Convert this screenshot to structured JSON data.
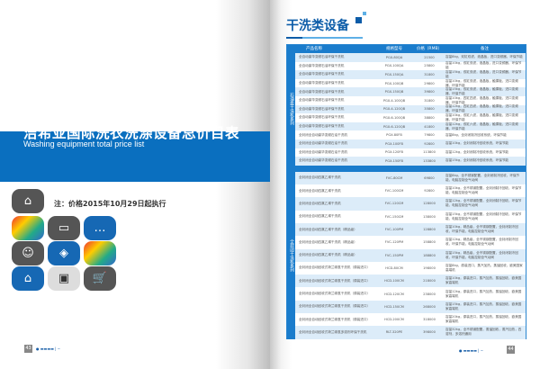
{
  "left_page": {
    "title": "洁希亚国际洗衣洗涤设备总价目表",
    "subtitle": "Washing equipment total price list",
    "note": "注：价格2015年10月29日起执行",
    "page_number": "43",
    "brand_color": "#0a6fbf",
    "icons": [
      "briefcase-icon",
      "faces-icon",
      "credit-card-icon",
      "chat-icon",
      "brain-icon",
      "price-tag-icon",
      "collage-icon",
      "home-icon",
      "devices-icon",
      "shopping-cart-icon"
    ]
  },
  "right_page": {
    "title": "干洗类设备",
    "page_number": "44",
    "headers": [
      "产品名称",
      "规格型号",
      "价格（RMB）",
      "备注"
    ],
    "sections": [
      {
        "label": "石油类干洗机系列",
        "rows": [
          [
            "全自动豪华变频石油环保干洗机",
            "PGX-80QA",
            "21500",
            "容量8kg，双缸双滤，液晶板，进口变频器，环保节能"
          ],
          [
            "全自动豪华变频石油环保干洗机",
            "PGX-100QA",
            "25800",
            "容量10kg，双缸双滤，液晶板，进口变频器，环保节能"
          ],
          [
            "全自动豪华变频石油环保干洗机",
            "PGX-150QA",
            "31800",
            "容量15kg，双缸双滤，液晶板，进口变频器，环保节能"
          ],
          [
            "全自动豪华变频石油环保干洗机",
            "PGX-100QB",
            "29800",
            "容量10kg，双缸双滤，液晶板，触摸板，进口变频器，环保节能"
          ],
          [
            "全自动豪华变频石油环保干洗机",
            "PGX-150QB",
            "39800",
            "容量15kg，双缸双滤，液晶板，触摸板，进口变频器，环保节能"
          ],
          [
            "全自动豪华变频石油环保干洗机",
            "PGX-4-100QB",
            "31800",
            "容量10kg，四缸四滤，液晶板，触摸板，进口变频器，环保节能"
          ],
          [
            "全自动豪华变频石油环保干洗机",
            "PGX-4-120QB",
            "35800",
            "容量12kg，四缸四滤，液晶板，触摸板，进口变频器，环保节能"
          ],
          [
            "全自动豪华变频石油环保干洗机",
            "PGX-6-100QB",
            "38800",
            "容量10kg，双缸六滤，液晶板，触摸板，进口变频器，环保节能"
          ],
          [
            "全自动豪华变频石油环保干洗机",
            "PGX-6-120QB",
            "41800",
            "容量12kg，双缸六滤，液晶板，触摸板，进口变频器，环保节能"
          ],
          [
            "全封闭全自动豪华变频石油干洗机",
            "PGX-80FB",
            "79800",
            "容量8kg，全封闭制冷回收系统，环保节能"
          ],
          [
            "全封闭全自动豪华变频石油干洗机",
            "PGX-100FB",
            "92800",
            "容量10kg，全封闭制冷回收系统，环保节能"
          ],
          [
            "全封闭全自动豪华变频石油干洗机",
            "PGX-120FB",
            "113800",
            "容量12kg，全封闭制冷回收系统，环保节能"
          ],
          [
            "全封闭全自动豪华变频石油干洗机",
            "PGX-150FB",
            "133800",
            "容量15kg，全封闭制冷回收系统，环保节能"
          ]
        ]
      },
      {
        "label": "全封闭干洗机系列",
        "rows": [
          [
            "全封闭全自动四氯乙烯干洗机",
            "FVC-80CM",
            "69800",
            "容量8kg，全不锈钢配置，全封闭制冷回收，环保节能，电脑控制全气动阀"
          ],
          [
            "全封闭全自动四氯乙烯干洗机",
            "FVC-100CM",
            "92800",
            "容量10kg，全不锈钢配置，全封闭制冷回收，环保节能，电脑控制全气动阀"
          ],
          [
            "全封闭全自动四氯乙烯干洗机",
            "FVC-120CM",
            "128000",
            "容量12kg，全不锈钢配置，全封闭制冷回收，环保节能，电脑控制全气动阀"
          ],
          [
            "全封闭全自动四氯乙烯干洗机",
            "FVC-150CM",
            "138000",
            "容量15kg，全不锈钢配置，全封闭制冷回收，环保节能，电脑控制全气动阀"
          ],
          [
            "全封闭全自动四氯乙烯干洗机（精品级）",
            "FVC-100PM",
            "128800",
            "容量10kg，精品级，全不锈钢配置，全封闭制冷回收，环保节能，电脑控制全气动阀"
          ],
          [
            "全封闭全自动四氯乙烯干洗机（精品级）",
            "FVC-120PM",
            "158800",
            "容量12kg，精品级，全不锈钢配置，全封闭制冷回收，环保节能，电脑控制全气动阀"
          ],
          [
            "全封闭全自动四氯乙烯干洗机（精品级）",
            "FVC-150PM",
            "188800",
            "容量15kg，精品级，全不锈钢配置，全封闭制冷回收，环保节能，电脑控制全气动阀"
          ],
          [
            "全封闭全自动回收式荷兰碳氢干洗机（原装进口）",
            "HCD-80CM",
            "198000",
            "容量8kg，原装进口，蒸汽加热，蒸馏回收，欧美国家高端机"
          ],
          [
            "全封闭全自动回收式荷兰碳氢干洗机（原装进口）",
            "HCD-100CM",
            "218000",
            "容量10kg，原装进口，蒸汽加热，蒸馏回收，欧美国家高端机"
          ],
          [
            "全封闭全自动回收式荷兰碳氢干洗机（原装进口）",
            "HCD-120CM",
            "238000",
            "容量12kg，原装进口，蒸汽加热，蒸馏回收，欧美国家高端机"
          ],
          [
            "全封闭全自动回收式荷兰碳氢干洗机（原装进口）",
            "HCD-150CM",
            "268000",
            "容量15kg，原装进口，蒸汽加热，蒸馏回收，欧美国家高端机"
          ],
          [
            "全封闭全自动回收式荷兰碳氢干洗机（原装进口）",
            "HCD-200CM",
            "318000",
            "容量20kg，原装进口，蒸汽加热，蒸馏回收，欧美国家高端机"
          ],
          [
            "全封闭全自动回收式荷兰碳氢多溶剂环保干洗机",
            "RLT-320PE",
            "398000",
            "容量32kg，全不锈钢配置，蒸馏回收，蒸汽加热，四溶剂，多溶剂通用"
          ]
        ]
      }
    ]
  }
}
